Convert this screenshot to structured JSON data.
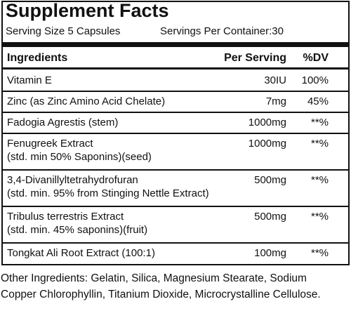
{
  "header": {
    "title": "Supplement Facts",
    "serving_size": "Serving Size 5 Capsules",
    "servings_per_container": "Servings Per Container:30"
  },
  "table": {
    "columns": [
      "Ingredients",
      "Per Serving",
      "%DV"
    ],
    "rows": [
      {
        "name": [
          "Vitamin E"
        ],
        "amount": "30IU",
        "dv": "100%"
      },
      {
        "name": [
          "Zinc (as Zinc Amino Acid Chelate)"
        ],
        "amount": "7mg",
        "dv": "45%"
      },
      {
        "name": [
          "Fadogia Agrestis (stem)"
        ],
        "amount": "1000mg",
        "dv": "**%"
      },
      {
        "name": [
          "Fenugreek Extract",
          "(std. min 50% Saponins)(seed)"
        ],
        "amount": "1000mg",
        "dv": "**%"
      },
      {
        "name": [
          "3,4-Divanillyltetrahydrofuran",
          "(std. min. 95% from Stinging Nettle Extract)"
        ],
        "amount": "500mg",
        "dv": "**%"
      },
      {
        "name": [
          "Tribulus terrestris Extract",
          "(std. min. 45% saponins)(fruit)"
        ],
        "amount": "500mg",
        "dv": "**%"
      },
      {
        "name": [
          "Tongkat Ali Root Extract (100:1)"
        ],
        "amount": "100mg",
        "dv": "**%"
      }
    ]
  },
  "footer": {
    "other_ingredients": [
      "Other Ingredients: Gelatin, Silica, Magnesium Stearate, Sodium",
      "Copper Chlorophyllin, Titanium Dioxide, Microcrystalline Cellulose."
    ]
  }
}
